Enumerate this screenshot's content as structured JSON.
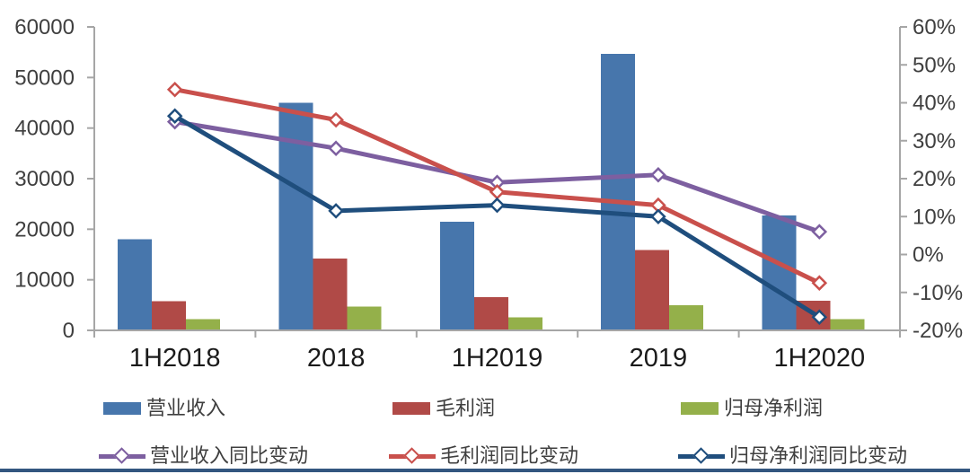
{
  "chart_data": {
    "type": "combo-bar-line",
    "title": "",
    "categories": [
      "1H2018",
      "2018",
      "1H2019",
      "2019",
      "1H2020"
    ],
    "bar_series": [
      {
        "id": "revenue",
        "name": "营业收入",
        "color": "#4776AC",
        "axis": "left",
        "values": [
          18000,
          45000,
          21500,
          54700,
          22700
        ]
      },
      {
        "id": "gross-profit",
        "name": "毛利润",
        "color": "#B04A47",
        "axis": "left",
        "values": [
          5800,
          14200,
          6600,
          15900,
          5900
        ]
      },
      {
        "id": "net-profit",
        "name": "归母净利润",
        "color": "#94B04A",
        "axis": "left",
        "values": [
          2200,
          4700,
          2600,
          5000,
          2200
        ]
      }
    ],
    "line_series": [
      {
        "id": "revenue-yoy",
        "name": "营业收入同比变动",
        "color": "#7D5FA0",
        "axis": "right",
        "values_pct": [
          35,
          28,
          19,
          21,
          6
        ]
      },
      {
        "id": "gross-profit-yoy",
        "name": "毛利润同比变动",
        "color": "#C9504C",
        "axis": "right",
        "values_pct": [
          43.5,
          35.5,
          16.5,
          13,
          -7.5
        ]
      },
      {
        "id": "net-profit-yoy",
        "name": "归母净利润同比变动",
        "color": "#1F4E7D",
        "axis": "right",
        "values_pct": [
          36.5,
          11.5,
          13,
          10,
          -16.5
        ]
      }
    ],
    "left_axis": {
      "min": 0,
      "max": 60000,
      "step": 10000,
      "tick_labels": [
        "0",
        "10000",
        "20000",
        "30000",
        "40000",
        "50000",
        "60000"
      ]
    },
    "right_axis": {
      "min": -20,
      "max": 60,
      "step": 10,
      "tick_labels": [
        "-20%",
        "-10%",
        "0%",
        "10%",
        "20%",
        "30%",
        "40%",
        "50%",
        "60%"
      ],
      "unit": "%"
    },
    "grid": false,
    "legend_position": "bottom"
  },
  "styles": {
    "background": "#FFFFFF",
    "axis_color": "#A6A6A6",
    "axis_label_color": "#3F3F3F",
    "x_label_color": "#1A1A1A",
    "legend_text_color": "#3F3F3F",
    "marker_fill": "#FFFFFF",
    "bottom_border_color": "#33567F"
  }
}
